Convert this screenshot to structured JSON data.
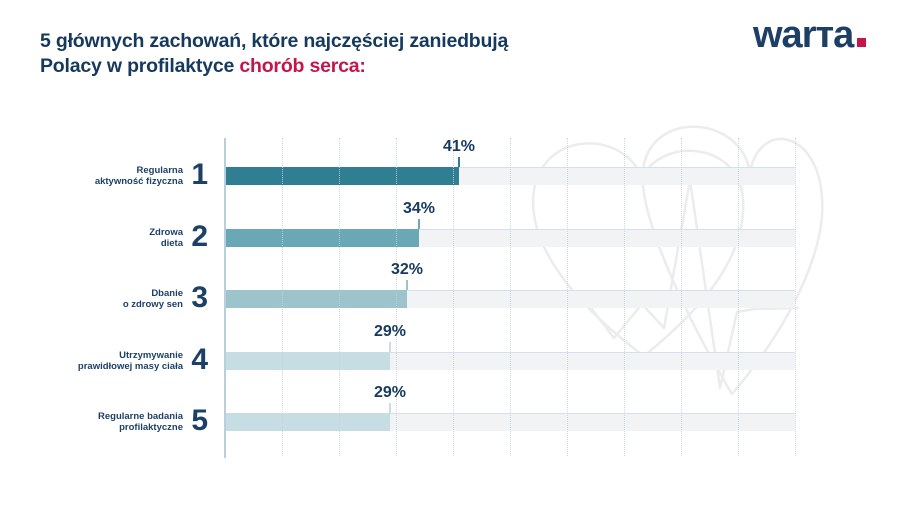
{
  "title": {
    "line1": "5 głównych zachowań, które najczęściej zaniedbują",
    "line2_prefix": "Polacy w profilaktyce ",
    "line2_highlight": "chorób serca:"
  },
  "logo": {
    "text": "warta.",
    "display_pre": "war",
    "display_t": "т",
    "display_post": "a"
  },
  "colors": {
    "navy": "#16395e",
    "accent_red": "#c4164a",
    "track_gray": "#f2f3f5",
    "axis_line": "#b9cfdd",
    "gridline": "#c2d3e0",
    "watermark": "#ececec",
    "bar_colors": [
      "#2f7e91",
      "#69a8b4",
      "#9dc4cd",
      "#c5dde3",
      "#c5dde3"
    ]
  },
  "chart_data": {
    "type": "bar",
    "orientation": "horizontal",
    "unit": "%",
    "xlim": [
      0,
      100
    ],
    "gridline_step": 10,
    "grid": "dotted-vertical",
    "legend": "none",
    "title": "5 głównych zachowań, które najczęściej zaniedbują Polacy w profilaktyce chorób serca:",
    "categories": [
      "Regularna aktywność fizyczna",
      "Zdrowa dieta",
      "Dbanie o zdrowy sen",
      "Utrzymywanie prawidłowej masy ciała",
      "Regularne badania profilaktyczne"
    ],
    "values": [
      41,
      34,
      32,
      29,
      29
    ],
    "rows": [
      {
        "rank": "1",
        "label_lines": [
          "Regularna",
          "aktywność fizyczna"
        ],
        "value": 41,
        "value_label": "41%",
        "bar_color": "#2f7e91"
      },
      {
        "rank": "2",
        "label_lines": [
          "Zdrowa",
          "dieta"
        ],
        "value": 34,
        "value_label": "34%",
        "bar_color": "#69a8b4"
      },
      {
        "rank": "3",
        "label_lines": [
          "Dbanie",
          "o zdrowy sen"
        ],
        "value": 32,
        "value_label": "32%",
        "bar_color": "#9dc4cd"
      },
      {
        "rank": "4",
        "label_lines": [
          "Utrzymywanie",
          "prawidłowej masy ciała"
        ],
        "value": 29,
        "value_label": "29%",
        "bar_color": "#c5dde3"
      },
      {
        "rank": "5",
        "label_lines": [
          "Regularne badania",
          "profilaktyczne"
        ],
        "value": 29,
        "value_label": "29%",
        "bar_color": "#c5dde3"
      }
    ]
  }
}
